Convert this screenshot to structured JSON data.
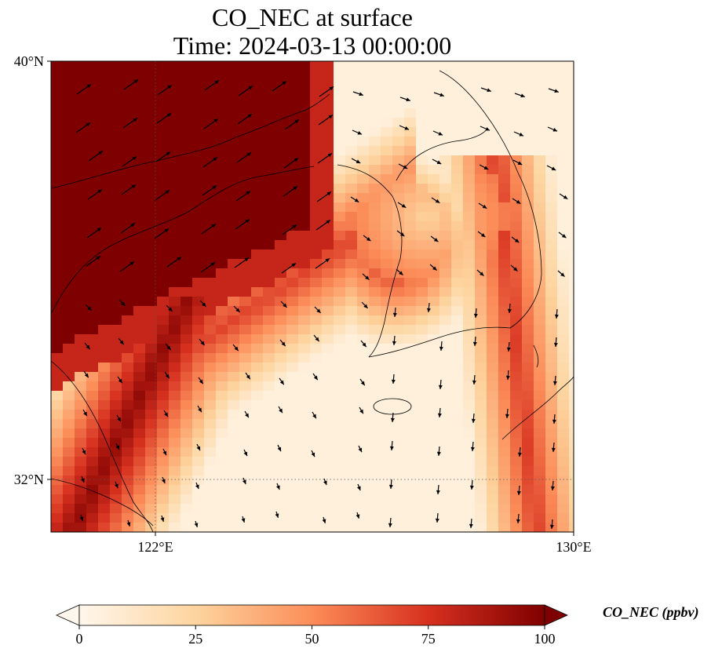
{
  "title": {
    "line1": "CO_NEC at surface",
    "line2": "Time: 2024-03-13 00:00:00"
  },
  "axes": {
    "lat_ticks": [
      {
        "value": 40,
        "label": "40°N"
      },
      {
        "value": 32,
        "label": "32°N"
      }
    ],
    "lon_ticks": [
      {
        "value": 122,
        "label": "122°E"
      },
      {
        "value": 130,
        "label": "130°E"
      }
    ],
    "lon_range": [
      120,
      130
    ],
    "lat_range": [
      31,
      40
    ]
  },
  "colorbar": {
    "label": "CO_NEC (ppbv)",
    "ticks": [
      "0",
      "25",
      "50",
      "75",
      "100"
    ],
    "colormap": "OrRd",
    "colors": [
      "#fff7ec",
      "#fdd49e",
      "#fc8d59",
      "#d7301f",
      "#7f0000"
    ],
    "extend": "both"
  },
  "chart_data": {
    "type": "heatmap",
    "title": "CO_NEC at surface / Time: 2024-03-13 00:00:00",
    "variable": "CO_NEC",
    "units": "ppbv",
    "vmin": 0,
    "vmax": 100,
    "overlay": "wind vectors",
    "gridlines": "dotted at 122°E and 32°N"
  }
}
